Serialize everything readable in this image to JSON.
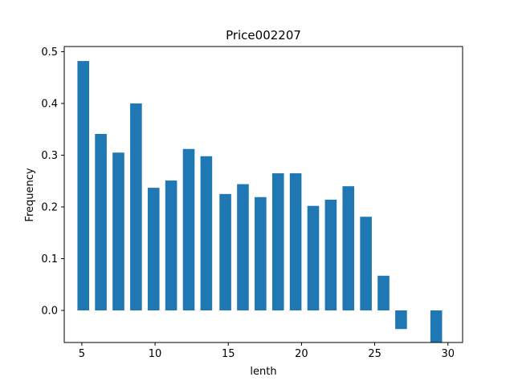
{
  "chart_data": {
    "type": "bar",
    "title": "Price002207",
    "xlabel": "lenth",
    "ylabel": "Frequency",
    "bar_color": "#1f77b4",
    "xlim": [
      3.8,
      31.0
    ],
    "ylim": [
      -0.062,
      0.51
    ],
    "xticks": [
      5,
      10,
      15,
      20,
      25,
      30
    ],
    "yticks": [
      0.0,
      0.1,
      0.2,
      0.3,
      0.4,
      0.5
    ],
    "ytick_labels": [
      "0.0",
      "0.1",
      "0.2",
      "0.3",
      "0.4",
      "0.5"
    ],
    "bar_width": 0.8,
    "x": [
      5.1,
      6.3,
      7.5,
      8.7,
      9.9,
      11.1,
      12.3,
      13.5,
      14.8,
      16.0,
      17.2,
      18.4,
      19.6,
      20.8,
      22.0,
      23.2,
      24.4,
      25.6,
      26.8,
      29.2
    ],
    "values": [
      0.482,
      0.341,
      0.305,
      0.4,
      0.237,
      0.251,
      0.312,
      0.298,
      0.225,
      0.244,
      0.219,
      0.265,
      0.265,
      0.202,
      0.214,
      0.24,
      0.181,
      0.067,
      -0.036,
      -0.062
    ]
  }
}
